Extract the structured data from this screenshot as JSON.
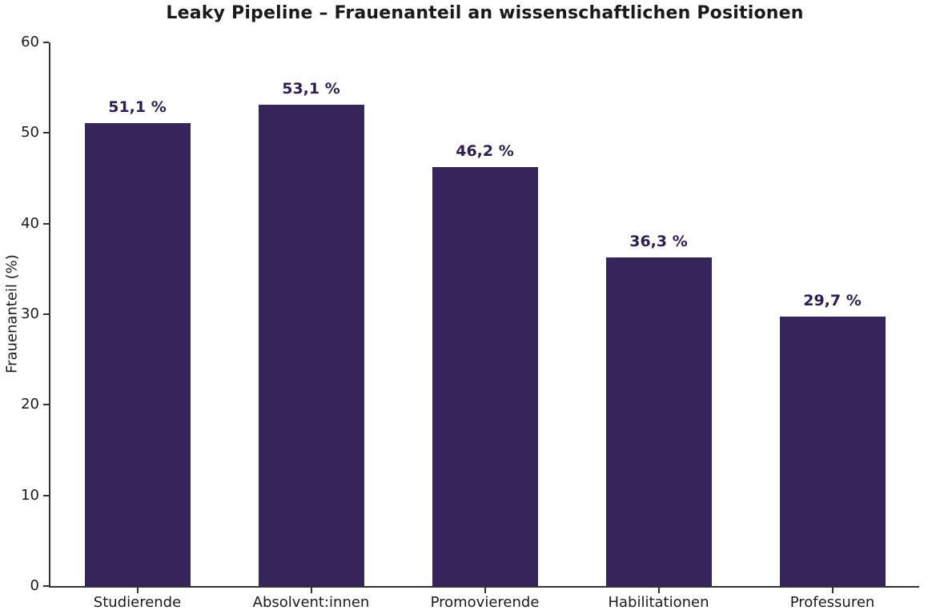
{
  "chart_data": {
    "type": "bar",
    "title": "Leaky Pipeline – Frauenanteil an wissenschaftlichen Positionen",
    "xlabel": "",
    "ylabel": "Frauenanteil (%)",
    "categories": [
      "Studierende",
      "Absolvent:innen",
      "Promovierende",
      "Habilitationen",
      "Professuren"
    ],
    "values": [
      51.1,
      53.1,
      46.2,
      36.3,
      29.7
    ],
    "value_labels": [
      "51,1 %",
      "53,1 %",
      "46,2 %",
      "36,3 %",
      "29,7 %"
    ],
    "ylim": [
      0,
      60
    ],
    "yticks": [
      0,
      10,
      20,
      30,
      40,
      50,
      60
    ],
    "grid": false,
    "legend": null,
    "colors": {
      "bar_fill": "#35255A",
      "value_label": "#2D1E50",
      "title_text": "#1A1A1A",
      "axis_line": "#333333",
      "tick_text": "#1A1A1A"
    }
  }
}
